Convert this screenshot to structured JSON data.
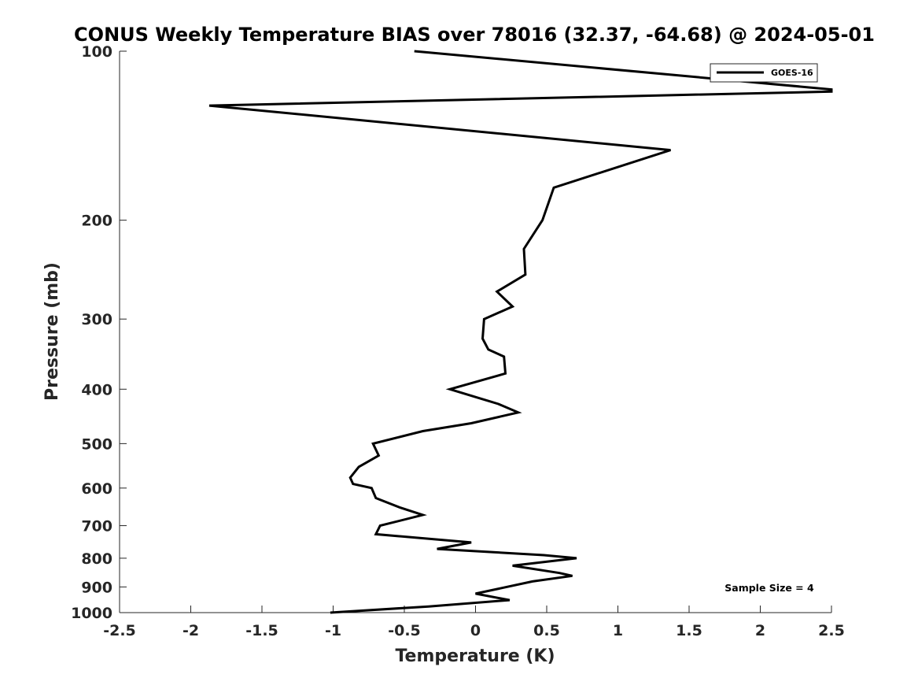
{
  "chart_data": {
    "type": "line",
    "title": "CONUS Weekly Temperature BIAS over 78016 (32.37, -64.68) @ 2024-05-01",
    "xlabel": "Temperature (K)",
    "ylabel": "Pressure (mb)",
    "xlim": [
      -2.5,
      2.5
    ],
    "ylim": [
      100,
      1000
    ],
    "y_scale": "log",
    "y_reversed": true,
    "x_ticks": [
      -2.5,
      -2,
      -1.5,
      -1,
      -0.5,
      0,
      0.5,
      1,
      1.5,
      2,
      2.5
    ],
    "x_tick_labels": [
      "-2.5",
      "-2",
      "-1.5",
      "-1",
      "-0.5",
      "0",
      "0.5",
      "1",
      "1.5",
      "2",
      "2.5"
    ],
    "y_ticks": [
      100,
      200,
      300,
      400,
      500,
      600,
      700,
      800,
      900,
      1000
    ],
    "y_tick_labels": [
      "100",
      "200",
      "300",
      "400",
      "500",
      "600",
      "700",
      "800",
      "900",
      "1000"
    ],
    "grid": false,
    "legend_position": "top-right",
    "annotation": "Sample Size = 4",
    "series": [
      {
        "name": "GOES-16",
        "color": "#000000",
        "points": [
          {
            "x": -0.43,
            "p": 100
          },
          {
            "x": 2.5,
            "p": 117
          },
          {
            "x": 2.5,
            "p": 118
          },
          {
            "x": -1.87,
            "p": 125
          },
          {
            "x": 1.37,
            "p": 150
          },
          {
            "x": 0.55,
            "p": 175
          },
          {
            "x": 0.47,
            "p": 200
          },
          {
            "x": 0.34,
            "p": 225
          },
          {
            "x": 0.35,
            "p": 250
          },
          {
            "x": 0.15,
            "p": 268
          },
          {
            "x": 0.26,
            "p": 285
          },
          {
            "x": 0.06,
            "p": 300
          },
          {
            "x": 0.05,
            "p": 325
          },
          {
            "x": 0.09,
            "p": 340
          },
          {
            "x": 0.2,
            "p": 350
          },
          {
            "x": 0.21,
            "p": 375
          },
          {
            "x": -0.18,
            "p": 400
          },
          {
            "x": 0.16,
            "p": 425
          },
          {
            "x": 0.3,
            "p": 440
          },
          {
            "x": -0.03,
            "p": 460
          },
          {
            "x": -0.37,
            "p": 475
          },
          {
            "x": -0.72,
            "p": 500
          },
          {
            "x": -0.68,
            "p": 525
          },
          {
            "x": -0.82,
            "p": 550
          },
          {
            "x": -0.88,
            "p": 575
          },
          {
            "x": -0.86,
            "p": 590
          },
          {
            "x": -0.73,
            "p": 600
          },
          {
            "x": -0.7,
            "p": 625
          },
          {
            "x": -0.53,
            "p": 650
          },
          {
            "x": -0.37,
            "p": 670
          },
          {
            "x": -0.67,
            "p": 700
          },
          {
            "x": -0.7,
            "p": 725
          },
          {
            "x": -0.03,
            "p": 750
          },
          {
            "x": -0.27,
            "p": 770
          },
          {
            "x": 0.48,
            "p": 790
          },
          {
            "x": 0.71,
            "p": 800
          },
          {
            "x": 0.26,
            "p": 825
          },
          {
            "x": 0.59,
            "p": 850
          },
          {
            "x": 0.68,
            "p": 860
          },
          {
            "x": 0.4,
            "p": 880
          },
          {
            "x": 0.0,
            "p": 925
          },
          {
            "x": 0.24,
            "p": 950
          },
          {
            "x": -0.33,
            "p": 975
          },
          {
            "x": -1.02,
            "p": 1000
          }
        ]
      }
    ]
  }
}
